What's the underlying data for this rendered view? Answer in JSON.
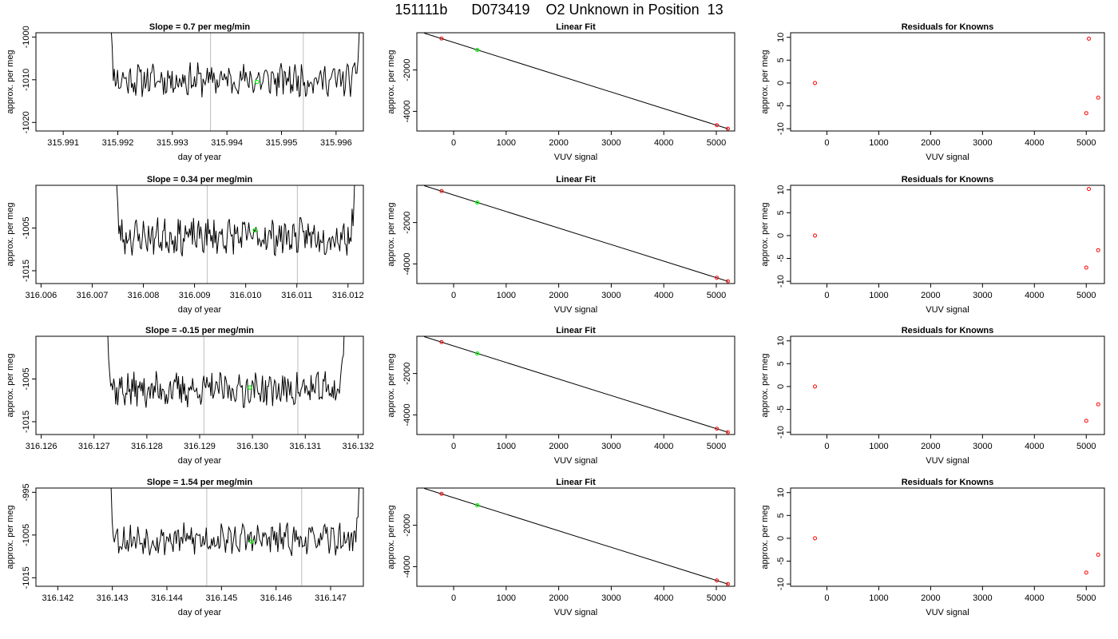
{
  "figure": {
    "title": "151111b      D073419    O2 Unknown in Position  13",
    "colors": {
      "trace": "#000000",
      "guide": "#bebebe",
      "known": "#ff0000",
      "unknown": "#00ff00"
    }
  },
  "chart_data": [
    {
      "type": "line",
      "title": "Slope =  0.7  per meg/min",
      "xlabel": "day of year",
      "ylabel": "approx. per meg",
      "xlim": [
        315.9905,
        315.9965
      ],
      "ylim": [
        -1022,
        -999
      ],
      "xticks": [
        315.991,
        315.992,
        315.993,
        315.994,
        315.995,
        315.996
      ],
      "xtick_labels": [
        "315.991",
        "315.992",
        "315.993",
        "315.994",
        "315.995",
        "315.996"
      ],
      "yticks": [
        -1020,
        -1010,
        -1000
      ],
      "ytick_labels": [
        "-1020",
        "-1010",
        "-1000"
      ],
      "vlines": [
        315.9937,
        315.9954
      ],
      "trace": {
        "x_start": 315.9918,
        "x_end": 315.9965,
        "baseline": -1010,
        "amplitude": 3.2,
        "seed": 11
      },
      "unknown_point": {
        "x": 315.99455,
        "y": -1010.5
      }
    },
    {
      "type": "scatter",
      "title": "Linear Fit",
      "xlabel": "VUV signal",
      "ylabel": "approx. per meg",
      "xlim": [
        -700,
        5350
      ],
      "ylim": [
        -4950,
        -200
      ],
      "xticks": [
        0,
        1000,
        2000,
        3000,
        4000,
        5000
      ],
      "xtick_labels": [
        "0",
        "1000",
        "2000",
        "3000",
        "4000",
        "5000"
      ],
      "yticks": [
        -4000,
        -2000
      ],
      "ytick_labels": [
        "-4000",
        "-2000"
      ],
      "fit_line": {
        "x": [
          -560,
          5230
        ],
        "y": [
          -220,
          -4850
        ]
      },
      "knowns": [
        {
          "x": -230,
          "y": -480
        },
        {
          "x": 5010,
          "y": -4670
        },
        {
          "x": 5220,
          "y": -4840
        }
      ],
      "unknown": {
        "x": 450,
        "y": -1030
      }
    },
    {
      "type": "scatter",
      "title": "Residuals for Knowns",
      "xlabel": "VUV signal",
      "ylabel": "approx. per meg",
      "xlim": [
        -700,
        5350
      ],
      "ylim": [
        -10.5,
        11
      ],
      "xticks": [
        0,
        1000,
        2000,
        3000,
        4000,
        5000
      ],
      "xtick_labels": [
        "0",
        "1000",
        "2000",
        "3000",
        "4000",
        "5000"
      ],
      "yticks": [
        -10,
        -5,
        0,
        5,
        10
      ],
      "ytick_labels": [
        "-10",
        "-5",
        "0",
        "5",
        "10"
      ],
      "points": [
        {
          "x": -230,
          "y": 0
        },
        {
          "x": 5050,
          "y": 9.7
        },
        {
          "x": 5000,
          "y": -6.6
        },
        {
          "x": 5230,
          "y": -3.2
        }
      ]
    },
    {
      "type": "line",
      "title": "Slope =  0.34  per meg/min",
      "xlabel": "day of year",
      "ylabel": "approx. per meg",
      "xlim": [
        316.0059,
        316.0123
      ],
      "ylim": [
        -1018,
        -995
      ],
      "xticks": [
        316.006,
        316.007,
        316.008,
        316.009,
        316.01,
        316.011,
        316.012
      ],
      "xtick_labels": [
        "316.006",
        "316.007",
        "316.008",
        "316.009",
        "316.010",
        "316.011",
        "316.012"
      ],
      "yticks": [
        -1015,
        -1005
      ],
      "ytick_labels": [
        "-1015",
        "-1005"
      ],
      "vlines": [
        316.00925,
        316.01101
      ],
      "trace": {
        "x_start": 316.0074,
        "x_end": 316.0122,
        "baseline": -1007,
        "amplitude": 3.5,
        "seed": 23
      },
      "unknown_point": {
        "x": 316.01018,
        "y": -1005.5
      }
    },
    {
      "type": "scatter",
      "title": "Linear Fit",
      "xlabel": "VUV signal",
      "ylabel": "approx. per meg",
      "xlim": [
        -700,
        5350
      ],
      "ylim": [
        -4950,
        -200
      ],
      "xticks": [
        0,
        1000,
        2000,
        3000,
        4000,
        5000
      ],
      "xtick_labels": [
        "0",
        "1000",
        "2000",
        "3000",
        "4000",
        "5000"
      ],
      "yticks": [
        -4000,
        -2000
      ],
      "ytick_labels": [
        "-4000",
        "-2000"
      ],
      "fit_line": {
        "x": [
          -560,
          5230
        ],
        "y": [
          -220,
          -4850
        ]
      },
      "knowns": [
        {
          "x": -230,
          "y": -480
        },
        {
          "x": 5010,
          "y": -4670
        },
        {
          "x": 5220,
          "y": -4840
        }
      ],
      "unknown": {
        "x": 450,
        "y": -1030
      }
    },
    {
      "type": "scatter",
      "title": "Residuals for Knowns",
      "xlabel": "VUV signal",
      "ylabel": "approx. per meg",
      "xlim": [
        -700,
        5350
      ],
      "ylim": [
        -10.5,
        11
      ],
      "xticks": [
        0,
        1000,
        2000,
        3000,
        4000,
        5000
      ],
      "xtick_labels": [
        "0",
        "1000",
        "2000",
        "3000",
        "4000",
        "5000"
      ],
      "yticks": [
        -10,
        -5,
        0,
        5,
        10
      ],
      "ytick_labels": [
        "-10",
        "-5",
        "0",
        "5",
        "10"
      ],
      "points": [
        {
          "x": -230,
          "y": 0
        },
        {
          "x": 5050,
          "y": 10.2
        },
        {
          "x": 5000,
          "y": -7.0
        },
        {
          "x": 5230,
          "y": -3.2
        }
      ]
    },
    {
      "type": "line",
      "title": "Slope =  -0.15  per meg/min",
      "xlabel": "day of year",
      "ylabel": "approx. per meg",
      "xlim": [
        316.1259,
        316.1321
      ],
      "ylim": [
        -1018,
        -995
      ],
      "xticks": [
        316.126,
        316.127,
        316.128,
        316.129,
        316.13,
        316.131,
        316.132
      ],
      "xtick_labels": [
        "316.126",
        "316.127",
        "316.128",
        "316.129",
        "316.130",
        "316.131",
        "316.132"
      ],
      "yticks": [
        -1015,
        -1005
      ],
      "ytick_labels": [
        "-1015",
        "-1005"
      ],
      "vlines": [
        316.12908,
        316.13086
      ],
      "trace": {
        "x_start": 316.1272,
        "x_end": 316.1318,
        "baseline": -1007.5,
        "amplitude": 3.4,
        "seed": 37
      },
      "unknown_point": {
        "x": 316.12995,
        "y": -1007
      }
    },
    {
      "type": "scatter",
      "title": "Linear Fit",
      "xlabel": "VUV signal",
      "ylabel": "approx. per meg",
      "xlim": [
        -700,
        5350
      ],
      "ylim": [
        -4950,
        -200
      ],
      "xticks": [
        0,
        1000,
        2000,
        3000,
        4000,
        5000
      ],
      "xtick_labels": [
        "0",
        "1000",
        "2000",
        "3000",
        "4000",
        "5000"
      ],
      "yticks": [
        -4000,
        -2000
      ],
      "ytick_labels": [
        "-4000",
        "-2000"
      ],
      "fit_line": {
        "x": [
          -560,
          5230
        ],
        "y": [
          -220,
          -4850
        ]
      },
      "knowns": [
        {
          "x": -230,
          "y": -480
        },
        {
          "x": 5010,
          "y": -4670
        },
        {
          "x": 5220,
          "y": -4840
        }
      ],
      "unknown": {
        "x": 450,
        "y": -1030
      }
    },
    {
      "type": "scatter",
      "title": "Residuals for Knowns",
      "xlabel": "VUV signal",
      "ylabel": "approx. per meg",
      "xlim": [
        -700,
        5350
      ],
      "ylim": [
        -10.5,
        11
      ],
      "xticks": [
        0,
        1000,
        2000,
        3000,
        4000,
        5000
      ],
      "xtick_labels": [
        "0",
        "1000",
        "2000",
        "3000",
        "4000",
        "5000"
      ],
      "yticks": [
        -10,
        -5,
        0,
        5,
        10
      ],
      "ytick_labels": [
        "-10",
        "-5",
        "0",
        "5",
        "10"
      ],
      "points": [
        {
          "x": -230,
          "y": 0
        },
        {
          "x": 5000,
          "y": -7.5
        },
        {
          "x": 5230,
          "y": -3.9
        }
      ]
    },
    {
      "type": "line",
      "title": "Slope =  1.54  per meg/min",
      "xlabel": "day of year",
      "ylabel": "approx. per meg",
      "xlim": [
        316.1416,
        316.1476
      ],
      "ylim": [
        -1017,
        -994
      ],
      "xticks": [
        316.142,
        316.143,
        316.144,
        316.145,
        316.146,
        316.147
      ],
      "xtick_labels": [
        "316.142",
        "316.143",
        "316.144",
        "316.145",
        "316.146",
        "316.147"
      ],
      "yticks": [
        -1015,
        -1005,
        -995
      ],
      "ytick_labels": [
        "-1015",
        "-1005",
        "-995"
      ],
      "vlines": [
        316.14473,
        316.14647
      ],
      "trace": {
        "x_start": 316.1429,
        "x_end": 316.1476,
        "baseline": -1006,
        "amplitude": 3.0,
        "seed": 53
      },
      "unknown_point": {
        "x": 316.14555,
        "y": -1006.5
      }
    },
    {
      "type": "scatter",
      "title": "Linear Fit",
      "xlabel": "VUV signal",
      "ylabel": "approx. per meg",
      "xlim": [
        -700,
        5350
      ],
      "ylim": [
        -4950,
        -200
      ],
      "xticks": [
        0,
        1000,
        2000,
        3000,
        4000,
        5000
      ],
      "xtick_labels": [
        "0",
        "1000",
        "2000",
        "3000",
        "4000",
        "5000"
      ],
      "yticks": [
        -4000,
        -2000
      ],
      "ytick_labels": [
        "-4000",
        "-2000"
      ],
      "fit_line": {
        "x": [
          -560,
          5230
        ],
        "y": [
          -220,
          -4850
        ]
      },
      "knowns": [
        {
          "x": -230,
          "y": -480
        },
        {
          "x": 5010,
          "y": -4670
        },
        {
          "x": 5220,
          "y": -4840
        }
      ],
      "unknown": {
        "x": 450,
        "y": -1030
      }
    },
    {
      "type": "scatter",
      "title": "Residuals for Knowns",
      "xlabel": "VUV signal",
      "ylabel": "approx. per meg",
      "xlim": [
        -700,
        5350
      ],
      "ylim": [
        -10.5,
        11
      ],
      "xticks": [
        0,
        1000,
        2000,
        3000,
        4000,
        5000
      ],
      "xtick_labels": [
        "0",
        "1000",
        "2000",
        "3000",
        "4000",
        "5000"
      ],
      "yticks": [
        -10,
        -5,
        0,
        5,
        10
      ],
      "ytick_labels": [
        "-10",
        "-5",
        "0",
        "5",
        "10"
      ],
      "points": [
        {
          "x": -230,
          "y": 0
        },
        {
          "x": 5000,
          "y": -7.5
        },
        {
          "x": 5230,
          "y": -3.6
        }
      ]
    }
  ]
}
